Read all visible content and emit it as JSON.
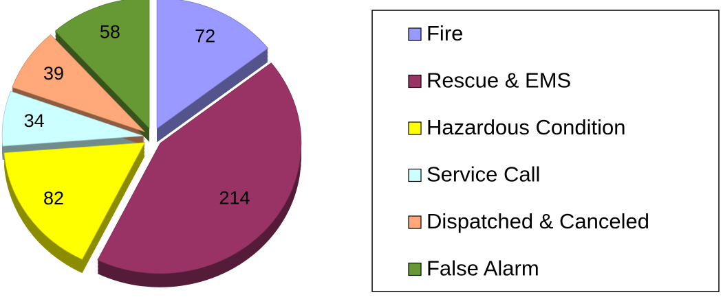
{
  "chart_data": {
    "type": "pie",
    "categories": [
      "Fire",
      "Rescue & EMS",
      "Hazardous Condition",
      "Service Call",
      "Dispatched & Canceled",
      "False Alarm"
    ],
    "values": [
      72,
      214,
      82,
      34,
      39,
      58
    ],
    "colors": [
      "#9999ff",
      "#993366",
      "#ffff00",
      "#ccffff",
      "#ffa97a",
      "#669933"
    ],
    "legend": "right"
  }
}
